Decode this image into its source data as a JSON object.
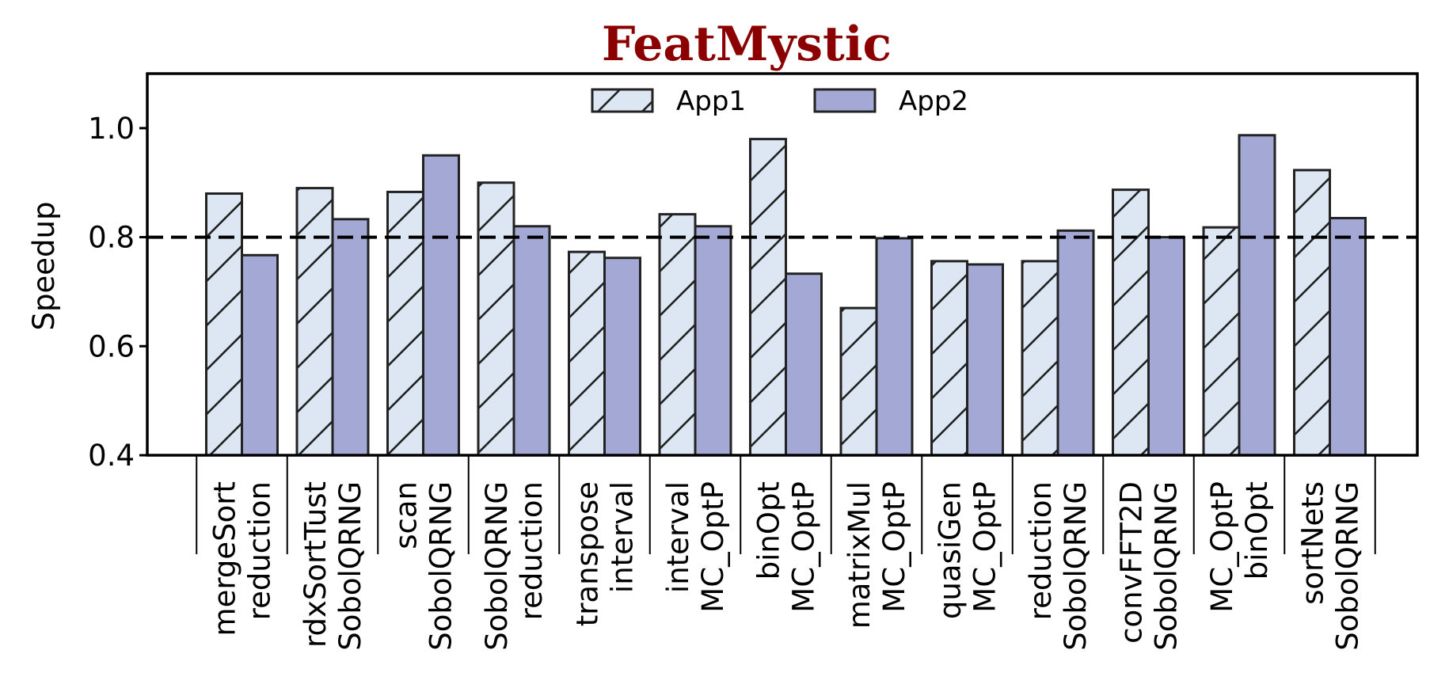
{
  "chart_data": {
    "type": "bar",
    "title": "FeatMystic",
    "ylabel": "Speedup",
    "xlabel": "",
    "ylim": [
      0.4,
      1.1
    ],
    "yticks": [
      0.4,
      0.6,
      0.8,
      1.0
    ],
    "ytick_labels": [
      "0.4",
      "0.6",
      "0.8",
      "1.0"
    ],
    "reference_line": 0.8,
    "legend_position": "top-center",
    "grid": false,
    "colors": {
      "title": "#8b0000",
      "App1": "#dde7f3",
      "App2": "#a3a9d4",
      "edge": "#222222"
    },
    "categories": [
      [
        "mergeSort",
        "reduction"
      ],
      [
        "rdxSortTust",
        "SobolQRNG"
      ],
      [
        "scan",
        "SobolQRNG"
      ],
      [
        "SobolQRNG",
        "reduction"
      ],
      [
        "transpose",
        "interval"
      ],
      [
        "interval",
        "MC_OptP"
      ],
      [
        "binOpt",
        "MC_OptP"
      ],
      [
        "matrixMul",
        "MC_OptP"
      ],
      [
        "quasiGen",
        "MC_OptP"
      ],
      [
        "reduction",
        "SobolQRNG"
      ],
      [
        "convFFT2D",
        "SobolQRNG"
      ],
      [
        "MC_OptP",
        "binOpt"
      ],
      [
        "sortNets",
        "SobolQRNG"
      ]
    ],
    "series": [
      {
        "name": "App1",
        "values": [
          0.88,
          0.89,
          0.883,
          0.9,
          0.773,
          0.842,
          0.98,
          0.67,
          0.756,
          0.756,
          0.887,
          0.818,
          0.923
        ]
      },
      {
        "name": "App2",
        "values": [
          0.767,
          0.833,
          0.95,
          0.82,
          0.762,
          0.82,
          0.733,
          0.798,
          0.75,
          0.812,
          0.8,
          0.987,
          0.835
        ]
      }
    ]
  }
}
